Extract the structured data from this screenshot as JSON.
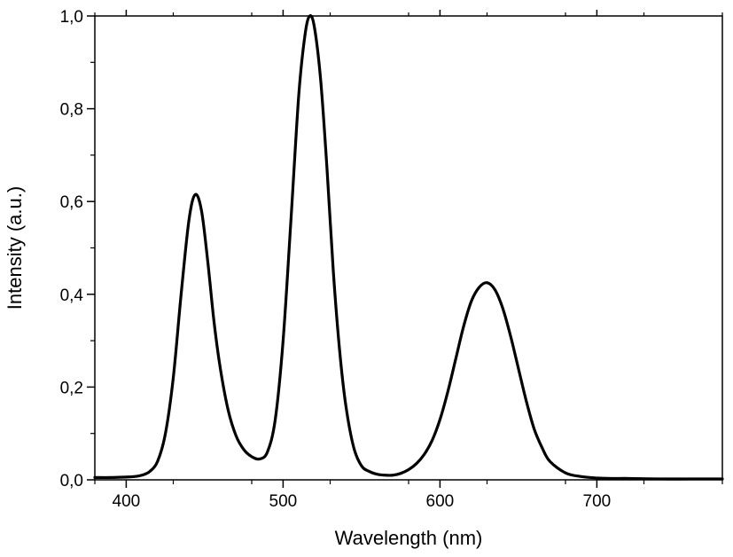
{
  "chart_data": {
    "type": "line",
    "title": "",
    "xlabel": "Wavelength (nm)",
    "ylabel": "Intensity (a.u.)",
    "xlim": [
      380,
      780
    ],
    "ylim": [
      0,
      1.0
    ],
    "xticks": [
      400,
      500,
      600,
      700
    ],
    "xtick_labels": [
      "400",
      "500",
      "600",
      "700"
    ],
    "yticks": [
      0,
      0.2,
      0.4,
      0.6,
      0.8,
      1.0
    ],
    "ytick_labels": [
      "0,0",
      "0,2",
      "0,4",
      "0,6",
      "0,8",
      "1,0"
    ],
    "grid": false,
    "legend": "none",
    "line_color": "#000000",
    "series": [
      {
        "x": [
          380,
          390,
          400,
          405,
          410,
          415,
          420,
          425,
          430,
          435,
          440,
          444,
          448,
          452,
          456,
          460,
          465,
          470,
          475,
          480,
          485,
          490,
          495,
          500,
          505,
          510,
          514,
          517,
          520,
          524,
          528,
          532,
          536,
          540,
          545,
          550,
          555,
          560,
          565,
          570,
          575,
          580,
          585,
          590,
          595,
          600,
          605,
          610,
          615,
          620,
          625,
          630,
          635,
          640,
          645,
          650,
          655,
          660,
          665,
          670,
          680,
          690,
          700,
          710,
          720,
          740,
          760,
          780
        ],
        "y": [
          0.005,
          0.005,
          0.006,
          0.007,
          0.01,
          0.018,
          0.04,
          0.1,
          0.22,
          0.4,
          0.56,
          0.615,
          0.58,
          0.47,
          0.34,
          0.24,
          0.15,
          0.095,
          0.065,
          0.05,
          0.045,
          0.06,
          0.13,
          0.3,
          0.56,
          0.83,
          0.96,
          1.0,
          0.975,
          0.86,
          0.67,
          0.45,
          0.28,
          0.16,
          0.07,
          0.03,
          0.018,
          0.012,
          0.01,
          0.01,
          0.014,
          0.022,
          0.035,
          0.055,
          0.085,
          0.13,
          0.19,
          0.26,
          0.33,
          0.385,
          0.415,
          0.425,
          0.41,
          0.37,
          0.31,
          0.24,
          0.17,
          0.11,
          0.07,
          0.04,
          0.015,
          0.007,
          0.004,
          0.003,
          0.003,
          0.002,
          0.002,
          0.002
        ]
      }
    ]
  }
}
